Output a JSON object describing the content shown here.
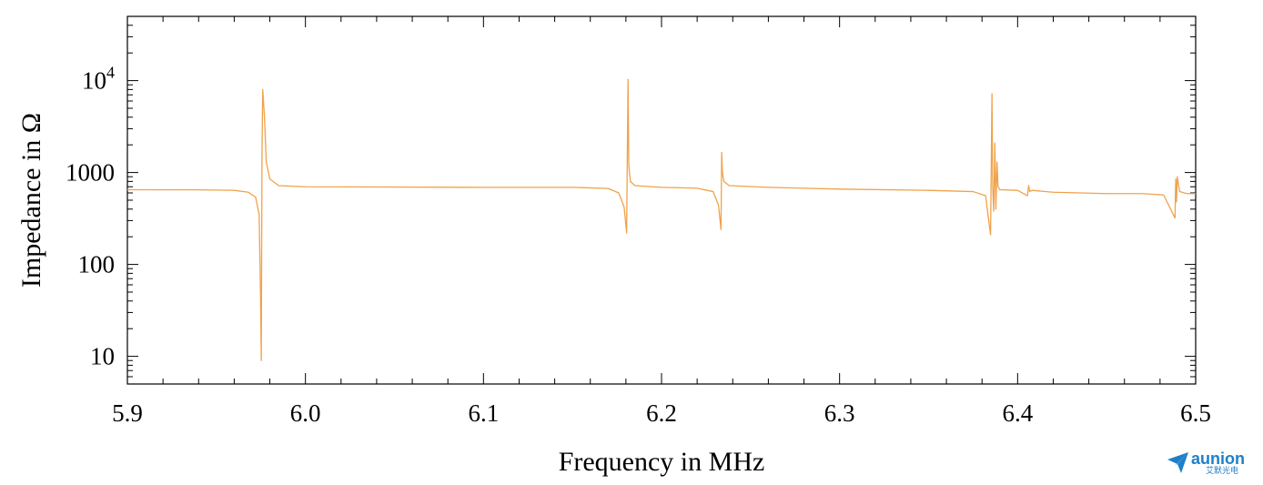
{
  "chart_data": {
    "type": "line",
    "title": "",
    "xlabel": "Frequency in MHz",
    "ylabel": "Impedance in Ω",
    "xlim": [
      5.9,
      6.5
    ],
    "ylim": [
      5,
      50000
    ],
    "y_scale": "log",
    "grid": false,
    "x_tick_labels": [
      "5.9",
      "6.0",
      "6.1",
      "6.2",
      "6.3",
      "6.4",
      "6.5"
    ],
    "y_tick_labels": [
      {
        "value": 10,
        "label": "10"
      },
      {
        "value": 100,
        "label": "100"
      },
      {
        "value": 1000,
        "label": "1000"
      },
      {
        "value": 10000,
        "label": "10",
        "exponent": "4"
      }
    ],
    "series": [
      {
        "color": "#f0a24a",
        "x": [
          5.9,
          5.94,
          5.96,
          5.968,
          5.972,
          5.974,
          5.9748,
          5.9752,
          5.9756,
          5.976,
          5.977,
          5.978,
          5.98,
          5.985,
          6.0,
          6.1,
          6.15,
          6.17,
          6.176,
          6.179,
          6.1804,
          6.1808,
          6.1812,
          6.1816,
          6.1825,
          6.185,
          6.2,
          6.22,
          6.229,
          6.232,
          6.2334,
          6.2338,
          6.2342,
          6.235,
          6.238,
          6.26,
          6.3,
          6.35,
          6.375,
          6.382,
          6.3848,
          6.3852,
          6.3856,
          6.386,
          6.3866,
          6.3872,
          6.3878,
          6.3884,
          6.389,
          6.39,
          6.4,
          6.4055,
          6.4062,
          6.4068,
          6.408,
          6.42,
          6.45,
          6.47,
          6.482,
          6.4884,
          6.4888,
          6.4892,
          6.4897,
          6.491,
          6.495,
          6.5
        ],
        "y": [
          650,
          648,
          640,
          610,
          540,
          350,
          45,
          9,
          1500,
          8000,
          4000,
          1300,
          850,
          720,
          700,
          690,
          690,
          670,
          600,
          420,
          220,
          1600,
          10300,
          1200,
          800,
          720,
          690,
          675,
          620,
          440,
          240,
          1650,
          1000,
          800,
          720,
          690,
          660,
          640,
          620,
          560,
          210,
          1200,
          7200,
          700,
          380,
          2100,
          400,
          1300,
          700,
          650,
          640,
          560,
          720,
          620,
          640,
          610,
          590,
          590,
          570,
          320,
          850,
          480,
          900,
          620,
          590,
          590
        ]
      }
    ]
  },
  "logo": {
    "text": "aunion",
    "subtext": "艾默光电",
    "brand_color": "#1f7fc9"
  }
}
